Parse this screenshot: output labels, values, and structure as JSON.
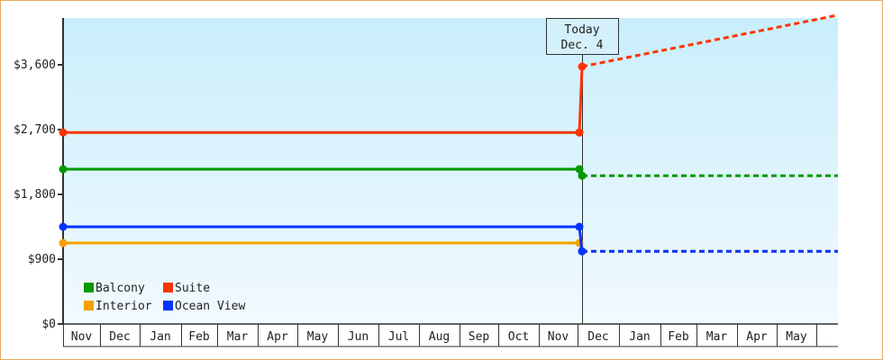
{
  "chart_data": {
    "type": "line",
    "title": "",
    "xlabel": "",
    "ylabel": "",
    "ylim": [
      0,
      4250
    ],
    "y_ticks": [
      "$0",
      "$900",
      "$1,800",
      "$2,700",
      "$3,600"
    ],
    "y_tick_values": [
      0,
      900,
      1800,
      2700,
      3600
    ],
    "x_ticks": [
      "Nov",
      "Dec",
      "Jan",
      "Feb",
      "Mar",
      "Apr",
      "May",
      "Jun",
      "Jul",
      "Aug",
      "Sep",
      "Oct",
      "Nov",
      "Dec",
      "Jan",
      "Feb",
      "Mar",
      "Apr",
      "May"
    ],
    "grid": false,
    "legend_position": "bottom-left",
    "today_marker": {
      "line1": "Today",
      "line2": "Dec. 4"
    },
    "series": [
      {
        "name": "Balcony",
        "color": "#009900",
        "actual": [
          [
            "Nov 1",
            2150
          ],
          [
            "Dec 3",
            2150
          ],
          [
            "Dec 4",
            2060
          ]
        ],
        "forecast": [
          [
            "Dec 4",
            2060
          ],
          [
            "end",
            2060
          ]
        ]
      },
      {
        "name": "Suite",
        "color": "#ff3300",
        "actual": [
          [
            "Nov 1",
            2660
          ],
          [
            "Dec 3",
            2660
          ],
          [
            "Dec 4",
            3575
          ]
        ],
        "forecast": [
          [
            "Dec 4",
            3575
          ],
          [
            "end",
            4290
          ]
        ]
      },
      {
        "name": "Interior",
        "color": "#f5a000",
        "actual": [
          [
            "Nov 1",
            1125
          ],
          [
            "Dec 3",
            1125
          ],
          [
            "Dec 4",
            1010
          ]
        ],
        "forecast": [
          [
            "Dec 4",
            1010
          ],
          [
            "end",
            1010
          ]
        ]
      },
      {
        "name": "Ocean View",
        "color": "#0033ff",
        "actual": [
          [
            "Nov 1",
            1350
          ],
          [
            "Dec 3",
            1350
          ],
          [
            "Dec 4",
            1010
          ]
        ],
        "forecast": [
          [
            "Dec 4",
            1010
          ],
          [
            "end",
            1010
          ]
        ]
      }
    ]
  }
}
